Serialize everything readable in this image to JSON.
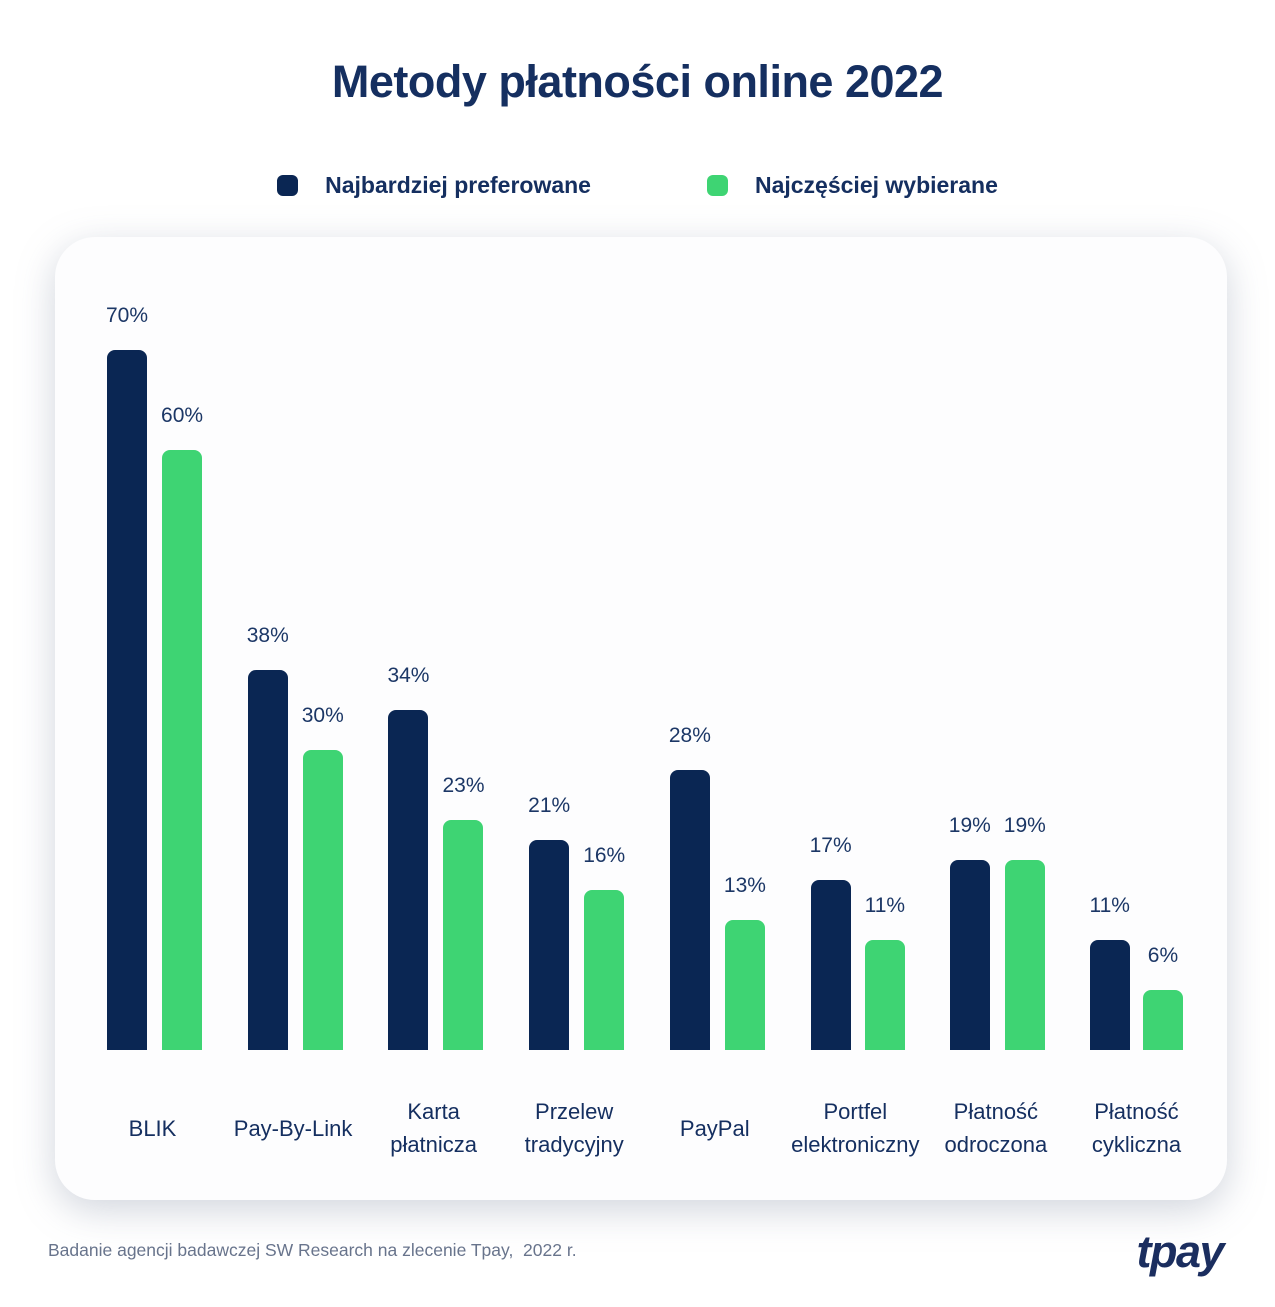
{
  "title": "Metody płatności online 2022",
  "legend": [
    {
      "label": "Najbardziej preferowane",
      "color": "#0a2653"
    },
    {
      "label": "Najczęściej wybierane",
      "color": "#3ed473"
    }
  ],
  "chart_data": {
    "type": "bar",
    "title": "Metody płatności online 2022",
    "categories": [
      "BLIK",
      "Pay-By-Link",
      "Karta płatnicza",
      "Przelew tradycyjny",
      "PayPal",
      "Portfel elektroniczny",
      "Płatność odroczona",
      "Płatność cykliczna"
    ],
    "category_lines": [
      [
        "BLIK"
      ],
      [
        "Pay-By-Link"
      ],
      [
        "Karta",
        "płatnicza"
      ],
      [
        "Przelew",
        "tradycyjny"
      ],
      [
        "PayPal"
      ],
      [
        "Portfel",
        "elektroniczny"
      ],
      [
        "Płatność",
        "odroczona"
      ],
      [
        "Płatność",
        "cykliczna"
      ]
    ],
    "series": [
      {
        "name": "Najbardziej preferowane",
        "color": "#0a2653",
        "values": [
          70,
          38,
          34,
          21,
          28,
          17,
          19,
          11
        ]
      },
      {
        "name": "Najczęściej wybierane",
        "color": "#3ed473",
        "values": [
          60,
          30,
          23,
          16,
          13,
          11,
          19,
          6
        ]
      }
    ],
    "value_suffix": "%",
    "ylim": [
      0,
      75
    ],
    "grid": false,
    "axes_visible": false,
    "legend_position": "top"
  },
  "footer": {
    "source": "Badanie agencji badawczej SW Research na zlecenie Tpay,  2022 r.",
    "logo": "tpay"
  },
  "colors": {
    "navy": "#0a2653",
    "green": "#3ed473",
    "text_navy": "#152f60",
    "source_gray": "#68748c",
    "card_bg": "#fdfdfe"
  }
}
